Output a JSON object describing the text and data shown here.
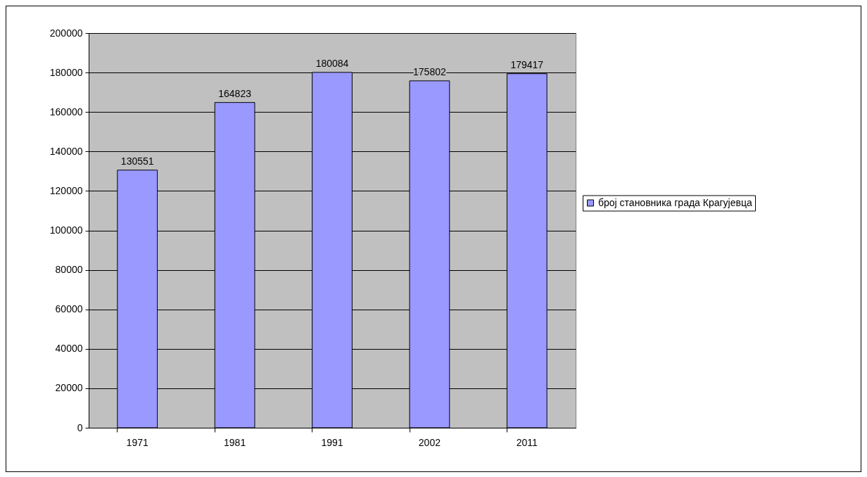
{
  "chart_data": {
    "type": "bar",
    "categories": [
      "1971",
      "1981",
      "1991",
      "2002",
      "2011"
    ],
    "series": [
      {
        "name": "број становника града Крагујевца",
        "color": "#9999ff",
        "values": [
          130551,
          164823,
          180084,
          175802,
          179417
        ]
      }
    ],
    "ylim": [
      0,
      200000
    ],
    "yticks": [
      0,
      20000,
      40000,
      60000,
      80000,
      100000,
      120000,
      140000,
      160000,
      180000,
      200000
    ],
    "grid": "y",
    "legend": "right",
    "data_labels": true
  }
}
